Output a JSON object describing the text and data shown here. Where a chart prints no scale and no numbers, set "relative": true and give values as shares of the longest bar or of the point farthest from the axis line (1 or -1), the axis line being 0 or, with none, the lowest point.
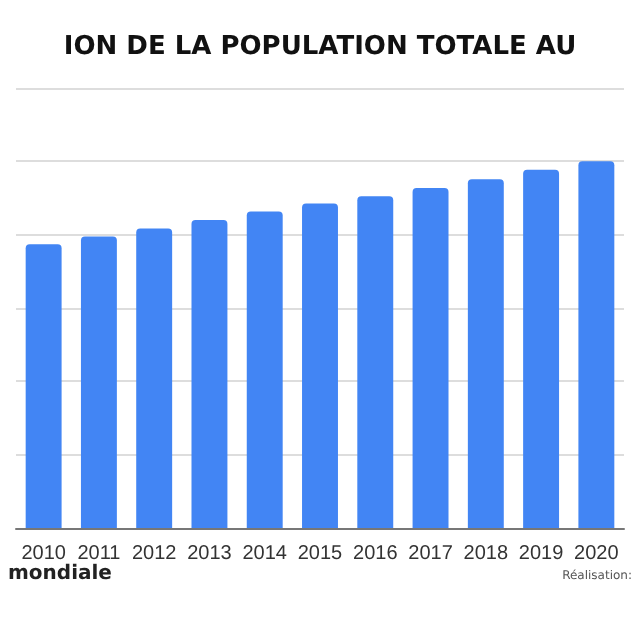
{
  "chart_data": {
    "type": "bar",
    "title": "ION DE LA POPULATION TOTALE AU",
    "categories": [
      "2010",
      "2011",
      "2012",
      "2013",
      "2014",
      "2015",
      "2016",
      "2017",
      "2018",
      "2019",
      "2020"
    ],
    "values": [
      0.774,
      0.795,
      0.817,
      0.84,
      0.863,
      0.885,
      0.905,
      0.927,
      0.951,
      0.977,
      1
    ],
    "color": "#4285f4",
    "relative": true,
    "grid": "y",
    "annotations": [
      "mondiale",
      "Réalisation:"
    ]
  }
}
